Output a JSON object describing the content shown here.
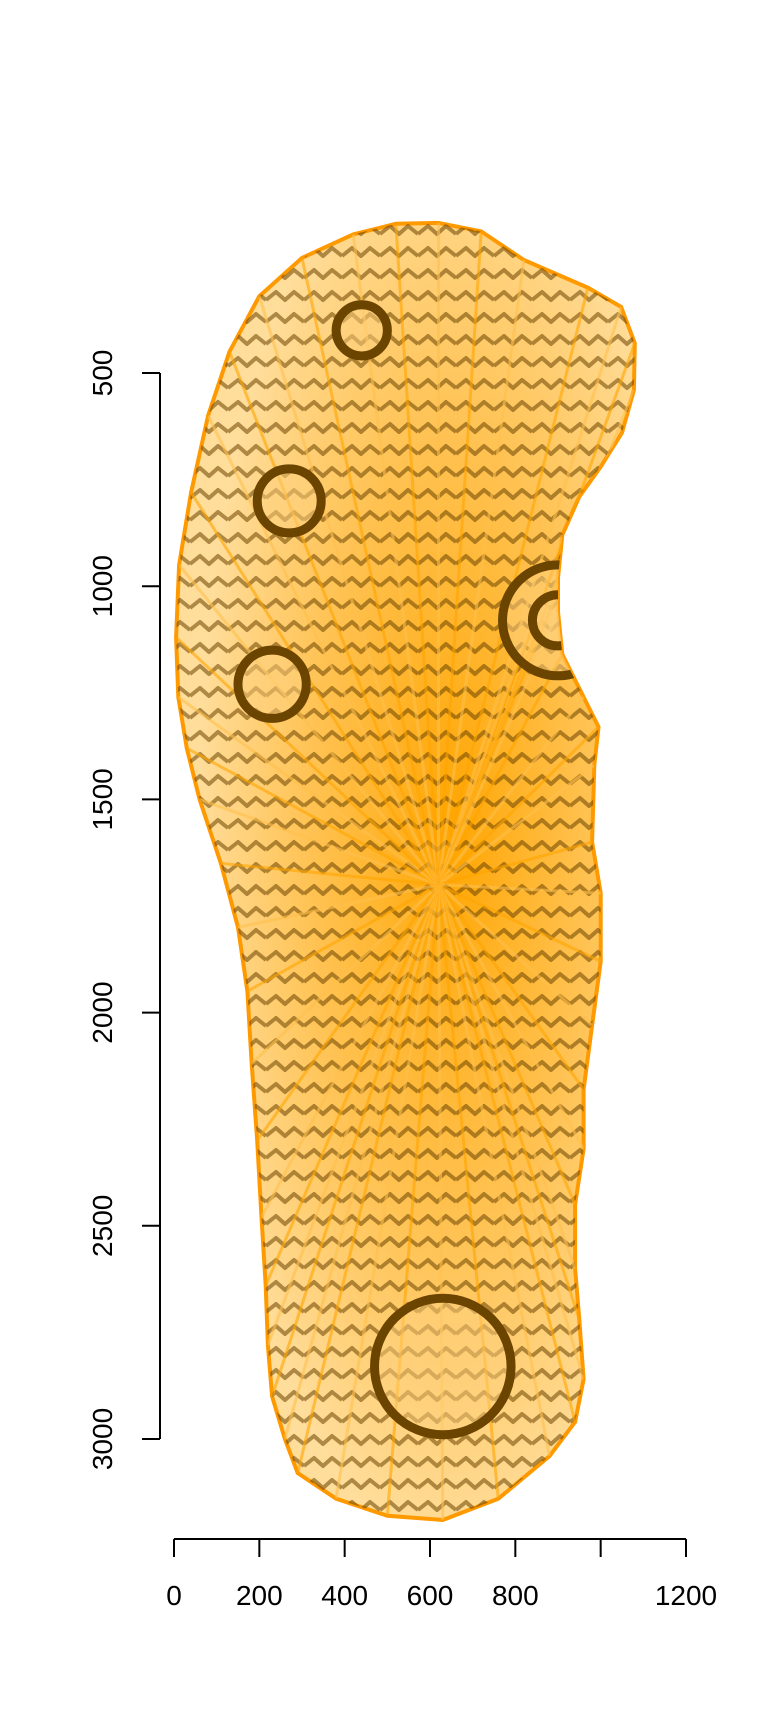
{
  "chart_data": {
    "type": "scatter",
    "title": "",
    "xlabel": "",
    "ylabel": "",
    "xlim": [
      0,
      1200
    ],
    "ylim": [
      3250,
      100
    ],
    "y_reversed": true,
    "grid": false,
    "x_ticks": [
      0,
      200,
      400,
      600,
      800,
      1000,
      1200
    ],
    "x_tick_labels": [
      "0",
      "200",
      "400",
      "600",
      "800",
      "",
      "1200"
    ],
    "y_ticks": [
      500,
      1000,
      1500,
      2000,
      2500,
      3000
    ],
    "y_tick_labels": [
      "500",
      "1000",
      "1500",
      "2000",
      "2500",
      "3000"
    ],
    "colors": {
      "fill": "#ffa500",
      "fill_light": "#ffd27f",
      "tread": "#6b4400",
      "outline": "#ff9900"
    },
    "series": [
      {
        "type": "polygon",
        "points": [
          [
            620,
            148
          ],
          [
            720,
            168
          ],
          [
            820,
            235
          ],
          [
            970,
            300
          ],
          [
            1048,
            345
          ],
          [
            1080,
            430
          ],
          [
            1078,
            540
          ],
          [
            1050,
            640
          ],
          [
            1000,
            720
          ],
          [
            950,
            790
          ],
          [
            910,
            880
          ],
          [
            900,
            980
          ],
          [
            900,
            1060
          ],
          [
            910,
            1160
          ],
          [
            960,
            1260
          ],
          [
            995,
            1330
          ],
          [
            985,
            1420
          ],
          [
            980,
            1600
          ],
          [
            1000,
            1720
          ],
          [
            1000,
            1880
          ],
          [
            980,
            2030
          ],
          [
            960,
            2180
          ],
          [
            960,
            2320
          ],
          [
            940,
            2450
          ],
          [
            940,
            2600
          ],
          [
            950,
            2720
          ],
          [
            960,
            2860
          ],
          [
            940,
            2960
          ],
          [
            880,
            3040
          ],
          [
            760,
            3140
          ],
          [
            630,
            3190
          ],
          [
            500,
            3180
          ],
          [
            380,
            3140
          ],
          [
            290,
            3080
          ],
          [
            260,
            3000
          ],
          [
            230,
            2900
          ],
          [
            220,
            2780
          ],
          [
            215,
            2640
          ],
          [
            205,
            2480
          ],
          [
            195,
            2300
          ],
          [
            182,
            2120
          ],
          [
            172,
            1950
          ],
          [
            150,
            1800
          ],
          [
            110,
            1650
          ],
          [
            60,
            1500
          ],
          [
            30,
            1380
          ],
          [
            10,
            1260
          ],
          [
            5,
            1120
          ],
          [
            12,
            950
          ],
          [
            40,
            780
          ],
          [
            80,
            600
          ],
          [
            130,
            450
          ],
          [
            200,
            320
          ],
          [
            300,
            230
          ],
          [
            420,
            175
          ],
          [
            520,
            150
          ]
        ]
      }
    ]
  }
}
